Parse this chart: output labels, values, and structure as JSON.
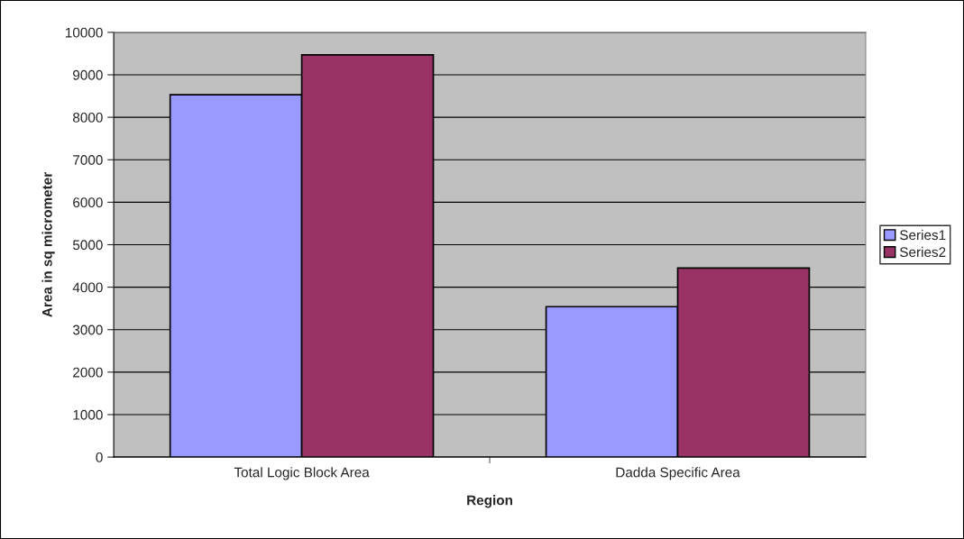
{
  "chart_data": {
    "type": "bar",
    "xlabel": "Region",
    "ylabel": "Area in sq micrometer",
    "categories": [
      "Total Logic Block Area",
      "Dadda Specific Area"
    ],
    "series": [
      {
        "name": "Series1",
        "color": "#9999ff",
        "values": [
          8530,
          3540
        ]
      },
      {
        "name": "Series2",
        "color": "#993366",
        "values": [
          9470,
          4450
        ]
      }
    ],
    "ylim": [
      0,
      10000
    ],
    "yticks": [
      0,
      1000,
      2000,
      3000,
      4000,
      5000,
      6000,
      7000,
      8000,
      9000,
      10000
    ],
    "grid": "y",
    "legend": "right"
  }
}
